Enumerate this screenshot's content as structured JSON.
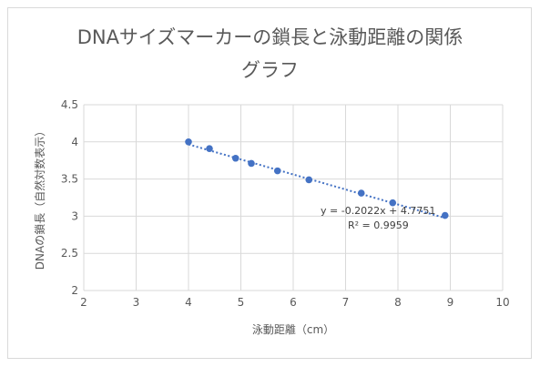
{
  "chart_data": {
    "type": "scatter",
    "title": "DNAサイズマーカーの鎖長と泳動距離の関係グラフ",
    "title_lines": [
      "DNAサイズマーカーの鎖長と泳動距離の関係",
      "グラフ"
    ],
    "xlabel": "泳動距離（cm）",
    "ylabel": "DNAの鎖長（自然対数表示）",
    "xlim": [
      2,
      10
    ],
    "ylim": [
      2,
      4.5
    ],
    "xticks": [
      "2",
      "3",
      "4",
      "5",
      "6",
      "7",
      "8",
      "9",
      "10"
    ],
    "yticks": [
      "2",
      "2.5",
      "3",
      "3.5",
      "4",
      "4.5"
    ],
    "grid": true,
    "legend": "none",
    "marker_color": "#4472c4",
    "series": [
      {
        "x": [
          4.0,
          4.4,
          4.9,
          5.2,
          5.7,
          6.3,
          7.3,
          7.9,
          8.9
        ],
        "y": [
          4.0,
          3.91,
          3.78,
          3.71,
          3.61,
          3.49,
          3.31,
          3.18,
          3.01
        ]
      }
    ],
    "trendline": {
      "type": "linear",
      "slope": -0.2022,
      "intercept": 4.7751,
      "equation": "y = -0.2022x + 4.7751",
      "r_squared": "R² = 0.9959"
    }
  }
}
